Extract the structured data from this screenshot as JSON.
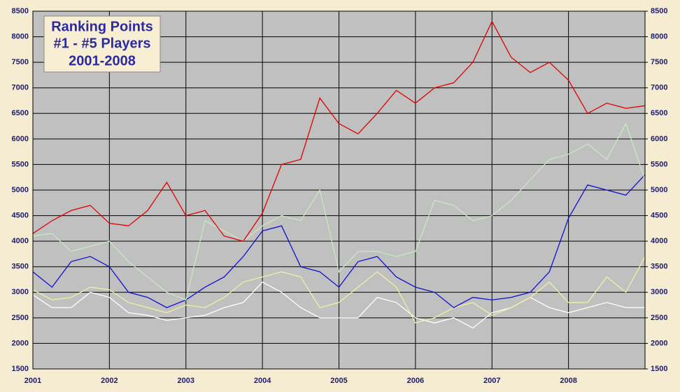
{
  "chart_data": {
    "type": "line",
    "title": [
      "Ranking Points",
      "#1 - #5 Players",
      "2001-2008"
    ],
    "x": [
      2001,
      2001.25,
      2001.5,
      2001.75,
      2002,
      2002.25,
      2002.5,
      2002.75,
      2003,
      2003.25,
      2003.5,
      2003.75,
      2004,
      2004.25,
      2004.5,
      2004.75,
      2005,
      2005.25,
      2005.5,
      2005.75,
      2006,
      2006.25,
      2006.5,
      2006.75,
      2007,
      2007.25,
      2007.5,
      2007.75,
      2008,
      2008.25,
      2008.5,
      2008.75,
      2009
    ],
    "series": [
      {
        "color": "#e00000",
        "values": [
          4150,
          4400,
          4600,
          4700,
          4350,
          4300,
          4600,
          5150,
          4500,
          4600,
          4100,
          4000,
          4550,
          5500,
          5600,
          6800,
          6300,
          6100,
          6500,
          6950,
          6700,
          7000,
          7100,
          7500,
          8300,
          7600,
          7300,
          7500,
          7150,
          6500,
          6700,
          6600,
          6650
        ]
      },
      {
        "color": "#c8e8c0",
        "values": [
          4100,
          4150,
          3800,
          3900,
          4000,
          3600,
          3300,
          3000,
          2850,
          4400,
          4200,
          4000,
          4300,
          4500,
          4400,
          5000,
          3400,
          3800,
          3800,
          3700,
          3800,
          4800,
          4700,
          4400,
          4500,
          4800,
          5200,
          5600,
          5700,
          5900,
          5600,
          6300,
          5200
        ]
      },
      {
        "color": "#1010d0",
        "values": [
          3400,
          3100,
          3600,
          3700,
          3500,
          3000,
          2900,
          2700,
          2850,
          3100,
          3300,
          3700,
          4200,
          4300,
          3500,
          3400,
          3100,
          3600,
          3700,
          3300,
          3100,
          3000,
          2700,
          2900,
          2850,
          2900,
          3000,
          3400,
          4450,
          5100,
          5000,
          4900,
          5300
        ]
      },
      {
        "color": "#f0f0a0",
        "values": [
          3050,
          2850,
          2900,
          3100,
          3050,
          2800,
          2700,
          2600,
          2750,
          2700,
          2900,
          3200,
          3300,
          3400,
          3300,
          2700,
          2800,
          3100,
          3400,
          3100,
          2400,
          2500,
          2700,
          2800,
          2550,
          2700,
          2900,
          3200,
          2800,
          2800,
          3300,
          3000,
          3700
        ]
      },
      {
        "color": "#ffffff",
        "values": [
          2950,
          2700,
          2700,
          3000,
          2900,
          2600,
          2550,
          2450,
          2500,
          2550,
          2700,
          2800,
          3200,
          3000,
          2700,
          2500,
          2500,
          2500,
          2900,
          2800,
          2500,
          2400,
          2500,
          2300,
          2600,
          2700,
          2900,
          2700,
          2600,
          2700,
          2800,
          2700,
          2700
        ]
      }
    ],
    "xlim": [
      2001,
      2009
    ],
    "xticks": [
      2001,
      2002,
      2003,
      2004,
      2005,
      2006,
      2007,
      2008
    ],
    "ylim": [
      1500,
      8500
    ],
    "yticks": [
      1500,
      2000,
      2500,
      3000,
      3500,
      4000,
      4500,
      5000,
      5500,
      6000,
      6500,
      7000,
      7500,
      8000,
      8500
    ],
    "y2lim": [
      1500,
      8500
    ],
    "y2ticks": [
      1500,
      2000,
      2500,
      3000,
      3500,
      4000,
      4500,
      5000,
      5500,
      6000,
      6500,
      7000,
      7500,
      8000,
      8500
    ],
    "grid": true
  }
}
